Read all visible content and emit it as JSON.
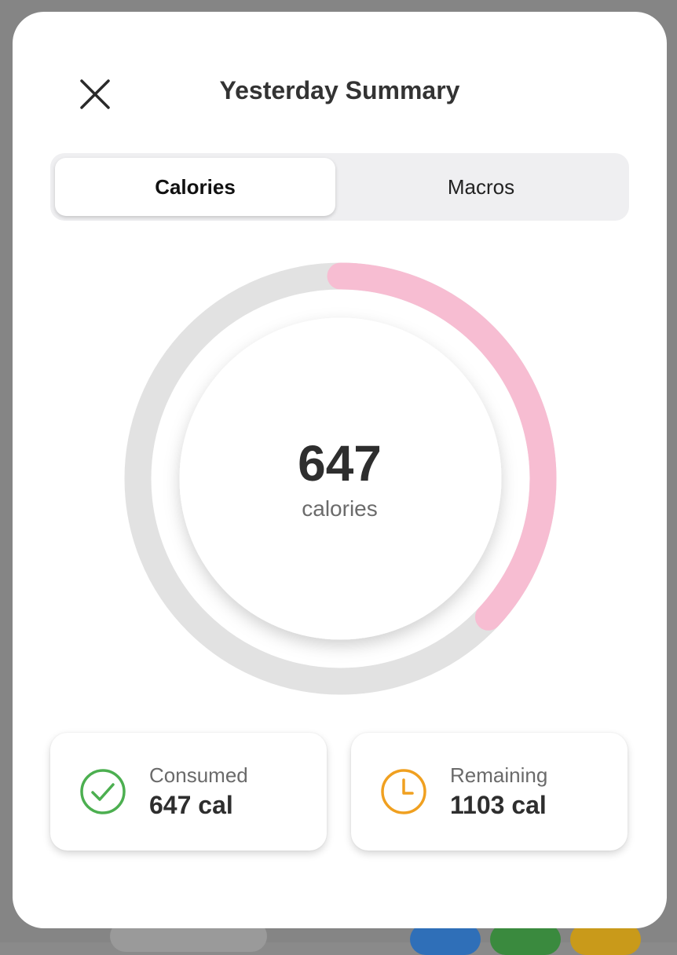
{
  "header": {
    "title": "Yesterday Summary"
  },
  "tabs": [
    {
      "label": "Calories",
      "active": true
    },
    {
      "label": "Macros",
      "active": false
    }
  ],
  "ring": {
    "value": "647",
    "unit": "calories",
    "consumed": 647,
    "remaining": 1103,
    "progress_color": "#f7bdd2",
    "track_color": "#e2e2e2"
  },
  "stats": {
    "consumed": {
      "label": "Consumed",
      "value": "647 cal",
      "icon": "check-circle-icon",
      "color": "#4caf50"
    },
    "remaining": {
      "label": "Remaining",
      "value": "1103 cal",
      "icon": "clock-icon",
      "color": "#f0a020"
    }
  },
  "colors": {
    "modal_bg": "#ffffff",
    "tab_bg": "#efeff1"
  }
}
